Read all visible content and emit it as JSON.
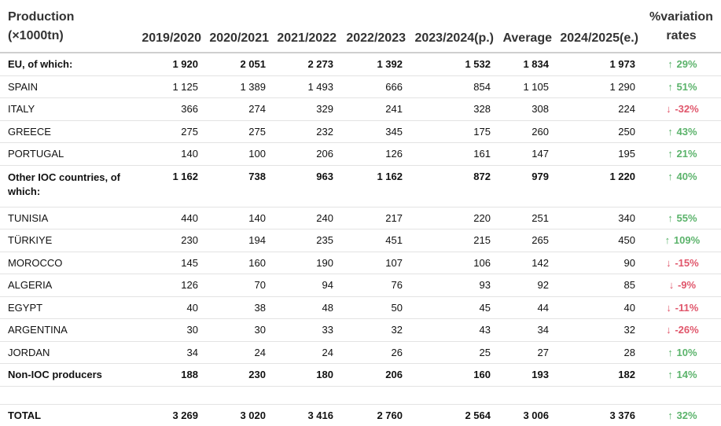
{
  "header": {
    "title_line1": "Production",
    "title_line2": "(×1000tn)",
    "columns": [
      "2019/2020",
      "2020/2021",
      "2021/2022",
      "2022/2023",
      "2023/2024(p.)",
      "Average",
      "2024/2025(e.)"
    ],
    "variation_line1": "%variation",
    "variation_line2": "rates"
  },
  "rows": [
    {
      "name": "EU, of which:",
      "values": [
        "1 920",
        "2 051",
        "2 273",
        "1 392",
        "1 532",
        "1 834",
        "1 973"
      ],
      "variation": "29%",
      "direction": "up",
      "bold": true
    },
    {
      "name": "SPAIN",
      "values": [
        "1 125",
        "1 389",
        "1 493",
        "666",
        "854",
        "1 105",
        "1 290"
      ],
      "variation": "51%",
      "direction": "up",
      "bold": false
    },
    {
      "name": "ITALY",
      "values": [
        "366",
        "274",
        "329",
        "241",
        "328",
        "308",
        "224"
      ],
      "variation": "-32%",
      "direction": "down",
      "bold": false
    },
    {
      "name": "GREECE",
      "values": [
        "275",
        "275",
        "232",
        "345",
        "175",
        "260",
        "250"
      ],
      "variation": "43%",
      "direction": "up",
      "bold": false
    },
    {
      "name": "PORTUGAL",
      "values": [
        "140",
        "100",
        "206",
        "126",
        "161",
        "147",
        "195"
      ],
      "variation": "21%",
      "direction": "up",
      "bold": false
    },
    {
      "name": "Other IOC countries, of which:",
      "values": [
        "1 162",
        "738",
        "963",
        "1 162",
        "872",
        "979",
        "1 220"
      ],
      "variation": "40%",
      "direction": "up",
      "bold": true,
      "tall": true
    },
    {
      "name": "TUNISIA",
      "values": [
        "440",
        "140",
        "240",
        "217",
        "220",
        "251",
        "340"
      ],
      "variation": "55%",
      "direction": "up",
      "bold": false
    },
    {
      "name": "TÜRKIYE",
      "values": [
        "230",
        "194",
        "235",
        "451",
        "215",
        "265",
        "450"
      ],
      "variation": "109%",
      "direction": "up",
      "bold": false
    },
    {
      "name": "MOROCCO",
      "values": [
        "145",
        "160",
        "190",
        "107",
        "106",
        "142",
        "90"
      ],
      "variation": "-15%",
      "direction": "down",
      "bold": false
    },
    {
      "name": "ALGERIA",
      "values": [
        "126",
        "70",
        "94",
        "76",
        "93",
        "92",
        "85"
      ],
      "variation": "-9%",
      "direction": "down",
      "bold": false
    },
    {
      "name": "EGYPT",
      "values": [
        "40",
        "38",
        "48",
        "50",
        "45",
        "44",
        "40"
      ],
      "variation": "-11%",
      "direction": "down",
      "bold": false
    },
    {
      "name": "ARGENTINA",
      "values": [
        "30",
        "30",
        "33",
        "32",
        "43",
        "34",
        "32"
      ],
      "variation": "-26%",
      "direction": "down",
      "bold": false
    },
    {
      "name": "JORDAN",
      "values": [
        "34",
        "24",
        "24",
        "26",
        "25",
        "27",
        "28"
      ],
      "variation": "10%",
      "direction": "up",
      "bold": false
    },
    {
      "name": "Non-IOC producers",
      "values": [
        "188",
        "230",
        "180",
        "206",
        "160",
        "193",
        "182"
      ],
      "variation": "14%",
      "direction": "up",
      "bold": true
    }
  ],
  "total": {
    "name": "TOTAL",
    "values": [
      "3 269",
      "3 020",
      "3 416",
      "2 760",
      "2 564",
      "3 006",
      "3 376"
    ],
    "variation": "32%",
    "direction": "up"
  },
  "colors": {
    "up": "#5bb36b",
    "down": "#e0566b",
    "header_text": "#333333",
    "rule": "#cfcfcf"
  },
  "icons": {
    "up": "arrow-up-icon",
    "down": "arrow-down-icon"
  }
}
